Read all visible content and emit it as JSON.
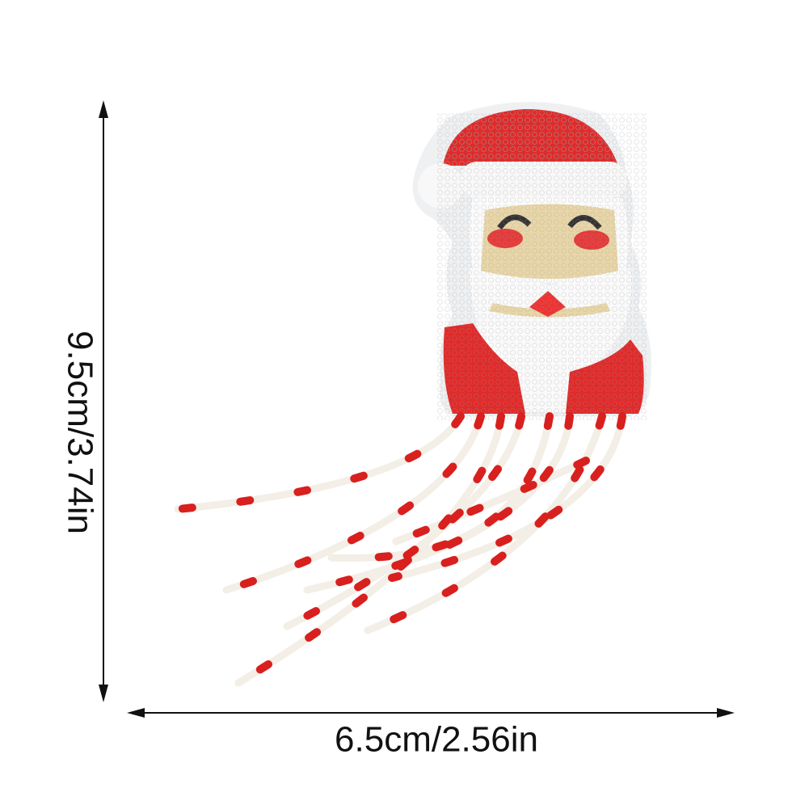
{
  "dimensions": {
    "height_label": "9.5cm/3.74in",
    "width_label": "6.5cm/2.56in"
  }
}
